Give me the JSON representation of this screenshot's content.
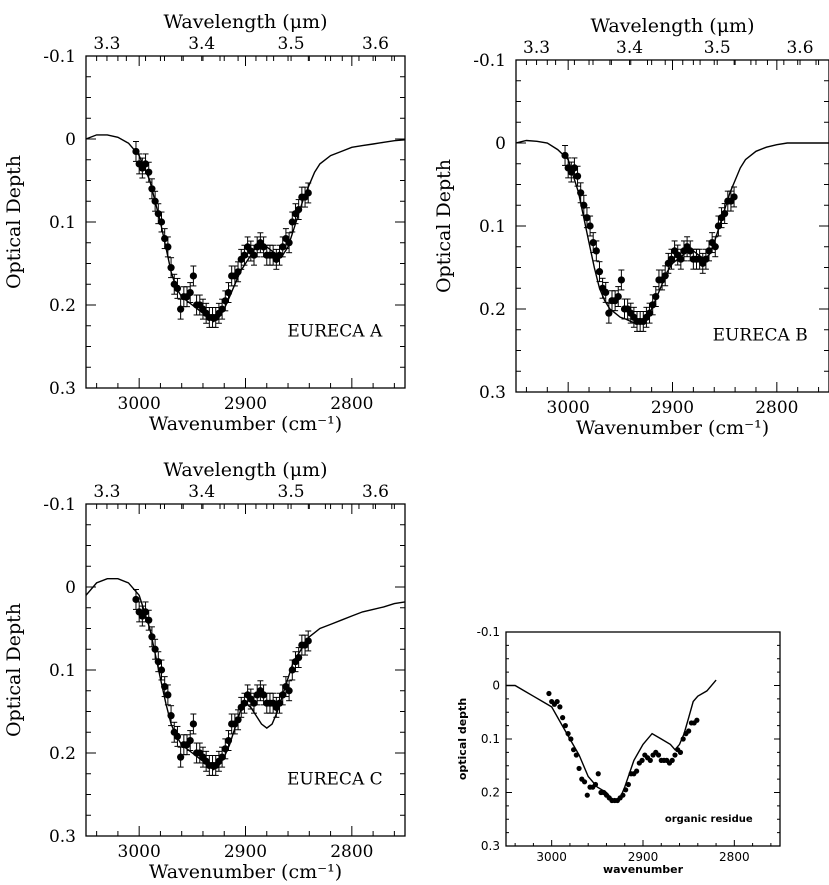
{
  "chart_data": [
    {
      "type": "line",
      "panel_label": "EURECA A",
      "xlabel": "Wavenumber  (cm⁻¹)",
      "ylabel": "Optical Depth",
      "top_axis_label": "Wavelength  (μm)",
      "xlim": [
        3050,
        2750
      ],
      "ylim": [
        0.3,
        -0.1
      ],
      "x_ticks": [
        "3000",
        "2900",
        "2800"
      ],
      "y_ticks": [
        "-0.1",
        "0",
        "0.1",
        "0.2",
        "0.3"
      ],
      "top_ticks": [
        "3.3",
        "3.4",
        "3.5",
        "3.6"
      ],
      "series": [
        {
          "kind": "model",
          "x": [
            3050,
            3040,
            3030,
            3020,
            3010,
            3000,
            2995,
            2990,
            2985,
            2980,
            2975,
            2970,
            2965,
            2960,
            2955,
            2950,
            2945,
            2940,
            2935,
            2930,
            2925,
            2920,
            2915,
            2910,
            2905,
            2900,
            2895,
            2890,
            2885,
            2880,
            2875,
            2870,
            2865,
            2860,
            2855,
            2850,
            2845,
            2840,
            2835,
            2830,
            2820,
            2810,
            2800,
            2790,
            2780,
            2770,
            2760,
            2750
          ],
          "y": [
            0.0,
            -0.005,
            -0.005,
            -0.002,
            0.005,
            0.02,
            0.035,
            0.05,
            0.075,
            0.1,
            0.13,
            0.16,
            0.18,
            0.19,
            0.195,
            0.2,
            0.205,
            0.21,
            0.215,
            0.22,
            0.215,
            0.205,
            0.19,
            0.175,
            0.16,
            0.15,
            0.14,
            0.13,
            0.13,
            0.13,
            0.135,
            0.14,
            0.14,
            0.13,
            0.11,
            0.09,
            0.07,
            0.055,
            0.04,
            0.03,
            0.02,
            0.015,
            0.01,
            0.008,
            0.006,
            0.004,
            0.002,
            0.001
          ]
        },
        {
          "kind": "observed",
          "x": [
            3003,
            3000,
            2997,
            2994,
            2991,
            2988,
            2985,
            2982,
            2979,
            2976,
            2973,
            2970,
            2967,
            2964,
            2961,
            2958,
            2955,
            2952,
            2949,
            2946,
            2943,
            2940,
            2937,
            2934,
            2931,
            2928,
            2925,
            2922,
            2919,
            2916,
            2913,
            2910,
            2907,
            2904,
            2901,
            2898,
            2895,
            2892,
            2889,
            2886,
            2883,
            2880,
            2877,
            2874,
            2871,
            2868,
            2865,
            2862,
            2859,
            2856,
            2853,
            2850,
            2847,
            2844,
            2841
          ],
          "y": [
            0.015,
            0.03,
            0.035,
            0.03,
            0.04,
            0.06,
            0.075,
            0.09,
            0.1,
            0.12,
            0.13,
            0.155,
            0.175,
            0.18,
            0.205,
            0.19,
            0.19,
            0.185,
            0.165,
            0.2,
            0.2,
            0.205,
            0.21,
            0.215,
            0.215,
            0.215,
            0.21,
            0.205,
            0.195,
            0.185,
            0.165,
            0.165,
            0.16,
            0.145,
            0.14,
            0.13,
            0.135,
            0.14,
            0.13,
            0.125,
            0.13,
            0.14,
            0.14,
            0.14,
            0.145,
            0.14,
            0.13,
            0.12,
            0.125,
            0.1,
            0.09,
            0.085,
            0.07,
            0.07,
            0.065
          ]
        }
      ]
    },
    {
      "type": "line",
      "panel_label": "EURECA B",
      "xlabel": "Wavenumber  (cm⁻¹)",
      "ylabel": "Optical Depth",
      "top_axis_label": "Wavelength  (μm)",
      "xlim": [
        3050,
        2750
      ],
      "ylim": [
        0.3,
        -0.1
      ],
      "x_ticks": [
        "3000",
        "2900",
        "2800"
      ],
      "y_ticks": [
        "-0.1",
        "0",
        "0.1",
        "0.2",
        "0.3"
      ],
      "top_ticks": [
        "3.3",
        "3.4",
        "3.5",
        "3.6"
      ],
      "series": [
        {
          "kind": "model",
          "x": [
            3050,
            3040,
            3030,
            3020,
            3010,
            3000,
            2995,
            2990,
            2985,
            2980,
            2975,
            2970,
            2965,
            2960,
            2955,
            2950,
            2945,
            2940,
            2935,
            2930,
            2925,
            2920,
            2915,
            2910,
            2905,
            2900,
            2895,
            2890,
            2885,
            2880,
            2875,
            2870,
            2865,
            2860,
            2855,
            2850,
            2845,
            2840,
            2835,
            2830,
            2820,
            2810,
            2800,
            2790,
            2780,
            2770,
            2760,
            2750
          ],
          "y": [
            0.0,
            -0.003,
            -0.002,
            0.0,
            0.008,
            0.02,
            0.04,
            0.06,
            0.09,
            0.12,
            0.15,
            0.175,
            0.19,
            0.2,
            0.205,
            0.21,
            0.212,
            0.215,
            0.217,
            0.218,
            0.212,
            0.2,
            0.185,
            0.17,
            0.155,
            0.145,
            0.14,
            0.135,
            0.13,
            0.13,
            0.135,
            0.14,
            0.135,
            0.12,
            0.1,
            0.08,
            0.06,
            0.045,
            0.03,
            0.02,
            0.01,
            0.005,
            0.002,
            0.0,
            0.0,
            0.0,
            0.0,
            0.0
          ]
        },
        {
          "kind": "observed",
          "x": [
            3003,
            3000,
            2997,
            2994,
            2991,
            2988,
            2985,
            2982,
            2979,
            2976,
            2973,
            2970,
            2967,
            2964,
            2961,
            2958,
            2955,
            2952,
            2949,
            2946,
            2943,
            2940,
            2937,
            2934,
            2931,
            2928,
            2925,
            2922,
            2919,
            2916,
            2913,
            2910,
            2907,
            2904,
            2901,
            2898,
            2895,
            2892,
            2889,
            2886,
            2883,
            2880,
            2877,
            2874,
            2871,
            2868,
            2865,
            2862,
            2859,
            2856,
            2853,
            2850,
            2847,
            2844,
            2841
          ],
          "y": [
            0.015,
            0.03,
            0.035,
            0.03,
            0.04,
            0.06,
            0.075,
            0.09,
            0.1,
            0.12,
            0.13,
            0.155,
            0.175,
            0.18,
            0.205,
            0.19,
            0.19,
            0.185,
            0.165,
            0.2,
            0.2,
            0.205,
            0.21,
            0.215,
            0.215,
            0.215,
            0.21,
            0.205,
            0.195,
            0.185,
            0.165,
            0.165,
            0.16,
            0.145,
            0.14,
            0.13,
            0.135,
            0.14,
            0.13,
            0.125,
            0.13,
            0.14,
            0.14,
            0.14,
            0.145,
            0.14,
            0.13,
            0.12,
            0.125,
            0.1,
            0.09,
            0.085,
            0.07,
            0.07,
            0.065
          ]
        }
      ]
    },
    {
      "type": "line",
      "panel_label": "EURECA C",
      "xlabel": "Wavenumber  (cm⁻¹)",
      "ylabel": "Optical Depth",
      "top_axis_label": "Wavelength  (μm)",
      "xlim": [
        3050,
        2750
      ],
      "ylim": [
        0.3,
        -0.1
      ],
      "x_ticks": [
        "3000",
        "2900",
        "2800"
      ],
      "y_ticks": [
        "-0.1",
        "0",
        "0.1",
        "0.2",
        "0.3"
      ],
      "top_ticks": [
        "3.3",
        "3.4",
        "3.5",
        "3.6"
      ],
      "series": [
        {
          "kind": "model",
          "x": [
            3050,
            3040,
            3030,
            3020,
            3010,
            3000,
            2995,
            2990,
            2985,
            2980,
            2975,
            2970,
            2965,
            2960,
            2955,
            2950,
            2945,
            2940,
            2935,
            2930,
            2925,
            2920,
            2915,
            2910,
            2905,
            2900,
            2895,
            2890,
            2885,
            2880,
            2875,
            2870,
            2865,
            2860,
            2855,
            2850,
            2845,
            2840,
            2835,
            2830,
            2820,
            2810,
            2800,
            2790,
            2780,
            2770,
            2760,
            2750
          ],
          "y": [
            0.01,
            -0.005,
            -0.01,
            -0.01,
            -0.005,
            0.01,
            0.03,
            0.05,
            0.08,
            0.11,
            0.14,
            0.165,
            0.18,
            0.19,
            0.195,
            0.2,
            0.205,
            0.21,
            0.215,
            0.22,
            0.215,
            0.205,
            0.19,
            0.17,
            0.15,
            0.14,
            0.145,
            0.155,
            0.165,
            0.17,
            0.165,
            0.15,
            0.13,
            0.11,
            0.09,
            0.08,
            0.07,
            0.06,
            0.055,
            0.05,
            0.045,
            0.04,
            0.035,
            0.03,
            0.027,
            0.024,
            0.02,
            0.018
          ]
        },
        {
          "kind": "observed",
          "x": [
            3003,
            3000,
            2997,
            2994,
            2991,
            2988,
            2985,
            2982,
            2979,
            2976,
            2973,
            2970,
            2967,
            2964,
            2961,
            2958,
            2955,
            2952,
            2949,
            2946,
            2943,
            2940,
            2937,
            2934,
            2931,
            2928,
            2925,
            2922,
            2919,
            2916,
            2913,
            2910,
            2907,
            2904,
            2901,
            2898,
            2895,
            2892,
            2889,
            2886,
            2883,
            2880,
            2877,
            2874,
            2871,
            2868,
            2865,
            2862,
            2859,
            2856,
            2853,
            2850,
            2847,
            2844,
            2841
          ],
          "y": [
            0.015,
            0.03,
            0.035,
            0.03,
            0.04,
            0.06,
            0.075,
            0.09,
            0.1,
            0.12,
            0.13,
            0.155,
            0.175,
            0.18,
            0.205,
            0.19,
            0.19,
            0.185,
            0.165,
            0.2,
            0.2,
            0.205,
            0.21,
            0.215,
            0.215,
            0.215,
            0.21,
            0.205,
            0.195,
            0.185,
            0.165,
            0.165,
            0.16,
            0.145,
            0.14,
            0.13,
            0.135,
            0.14,
            0.13,
            0.125,
            0.13,
            0.14,
            0.14,
            0.14,
            0.145,
            0.14,
            0.13,
            0.12,
            0.125,
            0.1,
            0.09,
            0.085,
            0.07,
            0.07,
            0.065
          ]
        }
      ]
    },
    {
      "type": "line",
      "panel_label": "organic residue",
      "xlabel": "wavenumber",
      "ylabel": "optical depth",
      "xlim": [
        3050,
        2750
      ],
      "ylim": [
        0.3,
        -0.1
      ],
      "x_ticks": [
        "3000",
        "2900",
        "2800"
      ],
      "y_ticks": [
        "-0.1",
        "0",
        "0.1",
        "0.2",
        "0.3"
      ],
      "series": [
        {
          "kind": "model",
          "x": [
            3050,
            3040,
            3030,
            3020,
            3010,
            3000,
            2990,
            2980,
            2970,
            2960,
            2950,
            2940,
            2935,
            2930,
            2925,
            2920,
            2910,
            2900,
            2890,
            2880,
            2870,
            2865,
            2860,
            2855,
            2850,
            2845,
            2840,
            2830,
            2820
          ],
          "y": [
            0.0,
            0.0,
            0.01,
            0.02,
            0.03,
            0.04,
            0.07,
            0.1,
            0.13,
            0.17,
            0.19,
            0.2,
            0.21,
            0.215,
            0.21,
            0.19,
            0.14,
            0.11,
            0.09,
            0.1,
            0.11,
            0.12,
            0.11,
            0.09,
            0.06,
            0.03,
            0.02,
            0.01,
            -0.01
          ]
        },
        {
          "kind": "observed",
          "x": [
            3003,
            3000,
            2997,
            2994,
            2991,
            2988,
            2985,
            2982,
            2979,
            2976,
            2973,
            2970,
            2967,
            2964,
            2961,
            2958,
            2955,
            2952,
            2949,
            2946,
            2943,
            2940,
            2937,
            2934,
            2931,
            2928,
            2925,
            2922,
            2919,
            2916,
            2913,
            2910,
            2907,
            2904,
            2901,
            2898,
            2895,
            2892,
            2889,
            2886,
            2883,
            2880,
            2877,
            2874,
            2871,
            2868,
            2865,
            2862,
            2859,
            2856,
            2853,
            2850,
            2847,
            2844,
            2841
          ],
          "y": [
            0.015,
            0.03,
            0.035,
            0.03,
            0.04,
            0.06,
            0.075,
            0.09,
            0.1,
            0.12,
            0.13,
            0.155,
            0.175,
            0.18,
            0.205,
            0.19,
            0.19,
            0.185,
            0.165,
            0.2,
            0.2,
            0.205,
            0.21,
            0.215,
            0.215,
            0.215,
            0.21,
            0.205,
            0.195,
            0.185,
            0.165,
            0.165,
            0.16,
            0.145,
            0.14,
            0.13,
            0.135,
            0.14,
            0.13,
            0.125,
            0.13,
            0.14,
            0.14,
            0.14,
            0.145,
            0.14,
            0.13,
            0.12,
            0.125,
            0.1,
            0.09,
            0.085,
            0.07,
            0.07,
            0.065
          ]
        }
      ]
    }
  ]
}
